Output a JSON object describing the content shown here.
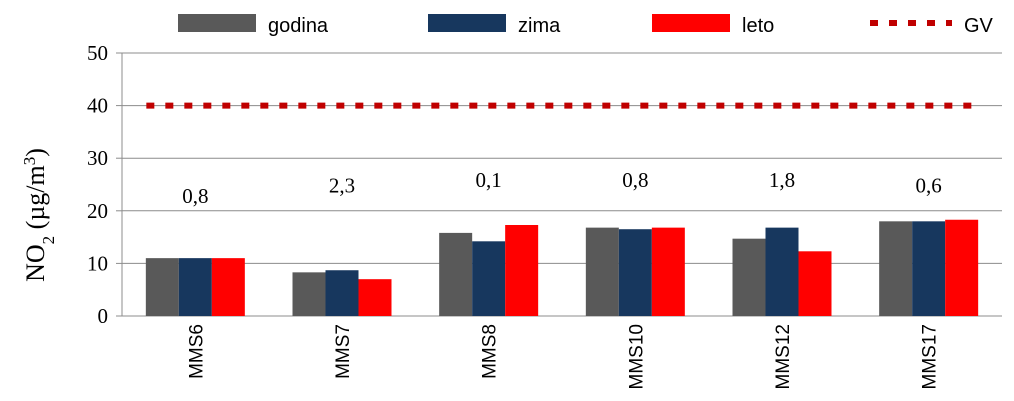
{
  "chart_data": {
    "type": "bar",
    "categories": [
      "MMS6",
      "MMS7",
      "MMS8",
      "MMS10",
      "MMS12",
      "MMS17"
    ],
    "series": [
      {
        "name": "godina",
        "color": "#595959",
        "values": [
          11.0,
          8.3,
          15.8,
          16.8,
          14.7,
          18.0
        ]
      },
      {
        "name": "zima",
        "color": "#17375e",
        "values": [
          11.0,
          8.7,
          14.2,
          16.5,
          16.8,
          18.0
        ]
      },
      {
        "name": "leto",
        "color": "#ff0000",
        "values": [
          11.0,
          7.0,
          17.3,
          16.8,
          12.3,
          18.3
        ]
      }
    ],
    "reference_line": {
      "name": "GV",
      "value": 40,
      "color": "#c00000",
      "style": "dotted"
    },
    "annotations": [
      "0,8",
      "2,3",
      "0,1",
      "0,8",
      "1,8",
      "0,6"
    ],
    "annotation_levels": [
      23,
      25,
      26,
      26,
      26,
      25
    ],
    "ylabel": {
      "main": "NO",
      "sub": "2",
      "unit": " (µg/m",
      "sup": "3",
      "close": ")"
    },
    "xlabel": "",
    "ylim": [
      0,
      50
    ],
    "yticks": [
      0,
      10,
      20,
      30,
      40,
      50
    ],
    "grid": true,
    "legend_position": "top"
  }
}
